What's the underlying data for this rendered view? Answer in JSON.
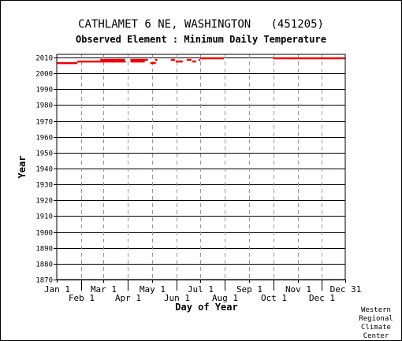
{
  "chart_data": {
    "type": "line",
    "title": "CATHLAMET 6 NE, WASHINGTON   (451205)",
    "subtitle": "Observed Element : Minimum Daily Temperature",
    "xlabel": "Day of Year",
    "ylabel": "Year",
    "xlim": [
      1,
      365
    ],
    "ylim": [
      1870,
      2012
    ],
    "y_ticks": [
      1870,
      1880,
      1890,
      1900,
      1910,
      1920,
      1930,
      1940,
      1950,
      1960,
      1970,
      1980,
      1990,
      2000,
      2010
    ],
    "x_ticks_top_row": [
      {
        "label": "Jan 1",
        "day": 1
      },
      {
        "label": "Mar 1",
        "day": 60
      },
      {
        "label": "May 1",
        "day": 121
      },
      {
        "label": "Jul 1",
        "day": 182
      },
      {
        "label": "Sep 1",
        "day": 244
      },
      {
        "label": "Nov 1",
        "day": 305
      },
      {
        "label": "Dec 31",
        "day": 365
      }
    ],
    "x_ticks_bottom_row": [
      {
        "label": "Feb 1",
        "day": 32
      },
      {
        "label": "Apr 1",
        "day": 91
      },
      {
        "label": "Jun 1",
        "day": 152
      },
      {
        "label": "Aug 1",
        "day": 213
      },
      {
        "label": "Oct 1",
        "day": 274
      },
      {
        "label": "Dec 1",
        "day": 335
      }
    ],
    "grid": true,
    "series_color": "#ee0000",
    "segments": [
      {
        "year": 2006.5,
        "start": 1,
        "end": 27
      },
      {
        "year": 2007.5,
        "start": 27,
        "end": 88
      },
      {
        "year": 2008.5,
        "start": 56,
        "end": 87
      },
      {
        "year": 2007.5,
        "start": 94,
        "end": 112
      },
      {
        "year": 2008.5,
        "start": 94,
        "end": 116
      },
      {
        "year": 2006.5,
        "start": 119,
        "end": 126
      },
      {
        "year": 2008.5,
        "start": 125,
        "end": 128
      },
      {
        "year": 2008.5,
        "start": 145,
        "end": 150
      },
      {
        "year": 2007.5,
        "start": 151,
        "end": 160
      },
      {
        "year": 2008.5,
        "start": 165,
        "end": 171
      },
      {
        "year": 2007.5,
        "start": 172,
        "end": 177
      },
      {
        "year": 2008.5,
        "start": 180,
        "end": 182
      },
      {
        "year": 2009.5,
        "start": 182,
        "end": 212
      },
      {
        "year": 2009.5,
        "start": 274,
        "end": 365
      }
    ]
  },
  "credit": [
    "Western",
    "Regional",
    "Climate",
    "Center"
  ]
}
